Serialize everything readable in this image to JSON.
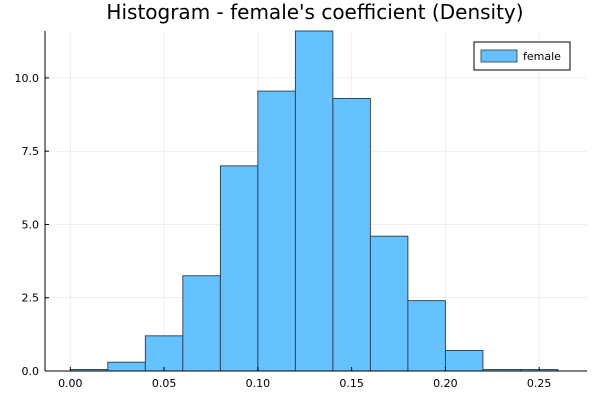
{
  "chart_data": {
    "type": "bar",
    "title": "Histogram - female's coefficient (Density)",
    "xlabel": "",
    "ylabel": "",
    "bin_edges": [
      -0.0,
      0.02,
      0.04,
      0.06,
      0.08,
      0.1,
      0.12,
      0.14,
      0.16,
      0.18,
      0.2,
      0.22,
      0.24,
      0.26
    ],
    "values": [
      0.05,
      0.3,
      1.2,
      3.25,
      7.0,
      9.55,
      11.6,
      9.3,
      4.6,
      2.4,
      0.7,
      0.05,
      0.05
    ],
    "xlim": [
      -0.0135,
      0.2755
    ],
    "ylim": [
      0,
      11.6
    ],
    "x_ticks": [
      0.0,
      0.05,
      0.1,
      0.15,
      0.2,
      0.25
    ],
    "x_tick_labels": [
      "0.00",
      "0.05",
      "0.10",
      "0.15",
      "0.20",
      "0.25"
    ],
    "y_ticks": [
      0.0,
      2.5,
      5.0,
      7.5,
      10.0
    ],
    "y_tick_labels": [
      "0.0",
      "2.5",
      "5.0",
      "7.5",
      "10.0"
    ],
    "grid": true,
    "legend_position": "top-right",
    "series": [
      {
        "name": "female",
        "color": "#66c2ff",
        "edge_color": "#2a3a44"
      }
    ]
  }
}
